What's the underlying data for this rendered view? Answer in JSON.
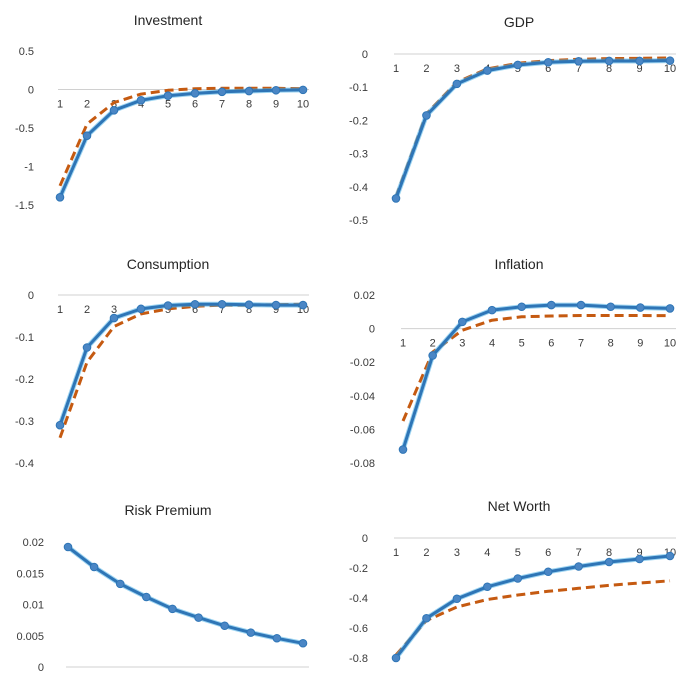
{
  "chart_data": [
    {
      "type": "line",
      "title": "Investment",
      "x": [
        1,
        2,
        3,
        4,
        5,
        6,
        7,
        8,
        9,
        10
      ],
      "ylim": [
        -1.5,
        0.5
      ],
      "yticks": [
        0.5,
        0,
        -0.5,
        -1,
        -1.5
      ],
      "ytick_labels": [
        "0.5",
        "0",
        "-0.5",
        "-1",
        "-1.5"
      ],
      "xtick_labels": [
        "1",
        "2",
        "3",
        "4",
        "5",
        "6",
        "7",
        "8",
        "9",
        "10"
      ],
      "series": [
        {
          "style": "solid-markers",
          "values": [
            -1.4,
            -0.6,
            -0.27,
            -0.14,
            -0.08,
            -0.05,
            -0.03,
            -0.02,
            -0.01,
            -0.005
          ]
        },
        {
          "style": "dashed",
          "values": [
            -1.25,
            -0.45,
            -0.17,
            -0.06,
            -0.01,
            0.01,
            0.015,
            0.015,
            0.015,
            0.01
          ]
        }
      ]
    },
    {
      "type": "line",
      "title": "GDP",
      "x": [
        1,
        2,
        3,
        4,
        5,
        6,
        7,
        8,
        9,
        10
      ],
      "ylim": [
        -0.5,
        0
      ],
      "yticks": [
        0,
        -0.1,
        -0.2,
        -0.3,
        -0.4,
        -0.5
      ],
      "ytick_labels": [
        "0",
        "-0.1",
        "-0.2",
        "-0.3",
        "-0.4",
        "-0.5"
      ],
      "xtick_labels": [
        "1",
        "2",
        "3",
        "4",
        "5",
        "6",
        "7",
        "8",
        "9",
        "10"
      ],
      "series": [
        {
          "style": "solid-markers",
          "values": [
            -0.435,
            -0.185,
            -0.09,
            -0.05,
            -0.033,
            -0.025,
            -0.022,
            -0.021,
            -0.021,
            -0.02
          ]
        },
        {
          "style": "dashed",
          "values": [
            -0.43,
            -0.18,
            -0.085,
            -0.045,
            -0.028,
            -0.02,
            -0.016,
            -0.014,
            -0.013,
            -0.012
          ]
        }
      ]
    },
    {
      "type": "line",
      "title": "Consumption",
      "x": [
        1,
        2,
        3,
        4,
        5,
        6,
        7,
        8,
        9,
        10
      ],
      "ylim": [
        -0.4,
        0
      ],
      "yticks": [
        0,
        -0.1,
        -0.2,
        -0.3,
        -0.4
      ],
      "ytick_labels": [
        "0",
        "-0.1",
        "-0.2",
        "-0.3",
        "-0.4"
      ],
      "xtick_labels": [
        "1",
        "2",
        "3",
        "4",
        "5",
        "6",
        "7",
        "8",
        "9",
        "10"
      ],
      "series": [
        {
          "style": "solid-markers",
          "values": [
            -0.31,
            -0.125,
            -0.055,
            -0.033,
            -0.025,
            -0.022,
            -0.022,
            -0.023,
            -0.024,
            -0.024
          ]
        },
        {
          "style": "dashed",
          "values": [
            -0.34,
            -0.16,
            -0.075,
            -0.045,
            -0.033,
            -0.027,
            -0.024,
            -0.024,
            -0.023,
            -0.022
          ]
        }
      ]
    },
    {
      "type": "line",
      "title": "Inflation",
      "x": [
        1,
        2,
        3,
        4,
        5,
        6,
        7,
        8,
        9,
        10
      ],
      "ylim": [
        -0.08,
        0.02
      ],
      "yticks": [
        0.02,
        0,
        -0.02,
        -0.04,
        -0.06,
        -0.08
      ],
      "ytick_labels": [
        "0.02",
        "0",
        "-0.02",
        "-0.04",
        "-0.06",
        "-0.08"
      ],
      "xtick_labels": [
        "1",
        "2",
        "3",
        "4",
        "5",
        "6",
        "7",
        "8",
        "9",
        "10"
      ],
      "series": [
        {
          "style": "solid-markers",
          "values": [
            -0.072,
            -0.016,
            0.004,
            0.011,
            0.013,
            0.014,
            0.014,
            0.013,
            0.0125,
            0.012
          ]
        },
        {
          "style": "dashed",
          "values": [
            -0.055,
            -0.014,
            -0.001,
            0.005,
            0.007,
            0.0075,
            0.0078,
            0.0078,
            0.0078,
            0.0077
          ]
        }
      ]
    },
    {
      "type": "line",
      "title": "Risk Premium",
      "x": [
        1,
        2,
        3,
        4,
        5,
        6,
        7,
        8,
        9,
        10
      ],
      "ylim": [
        0,
        0.02
      ],
      "yticks": [
        0.02,
        0.015,
        0.01,
        0.005,
        0
      ],
      "ytick_labels": [
        "0.02",
        "0.015",
        "0.01",
        "0.005",
        "0"
      ],
      "xtick_labels": [],
      "series": [
        {
          "style": "solid-markers",
          "values": [
            0.0192,
            0.016,
            0.0133,
            0.0112,
            0.0093,
            0.0079,
            0.0066,
            0.0055,
            0.0046,
            0.0038
          ]
        }
      ]
    },
    {
      "type": "line",
      "title": "Net Worth",
      "x": [
        1,
        2,
        3,
        4,
        5,
        6,
        7,
        8,
        9,
        10
      ],
      "ylim": [
        -0.8,
        0
      ],
      "yticks": [
        0,
        -0.2,
        -0.4,
        -0.6,
        -0.8
      ],
      "ytick_labels": [
        "0",
        "-0.2",
        "-0.4",
        "-0.6",
        "-0.8"
      ],
      "xtick_labels": [
        "1",
        "2",
        "3",
        "4",
        "5",
        "6",
        "7",
        "8",
        "9",
        "10"
      ],
      "series": [
        {
          "style": "solid-markers",
          "values": [
            -0.8,
            -0.535,
            -0.405,
            -0.325,
            -0.27,
            -0.225,
            -0.19,
            -0.16,
            -0.14,
            -0.12
          ]
        },
        {
          "style": "dashed",
          "values": [
            -0.78,
            -0.55,
            -0.46,
            -0.41,
            -0.38,
            -0.355,
            -0.335,
            -0.315,
            -0.3,
            -0.285
          ]
        }
      ]
    }
  ]
}
